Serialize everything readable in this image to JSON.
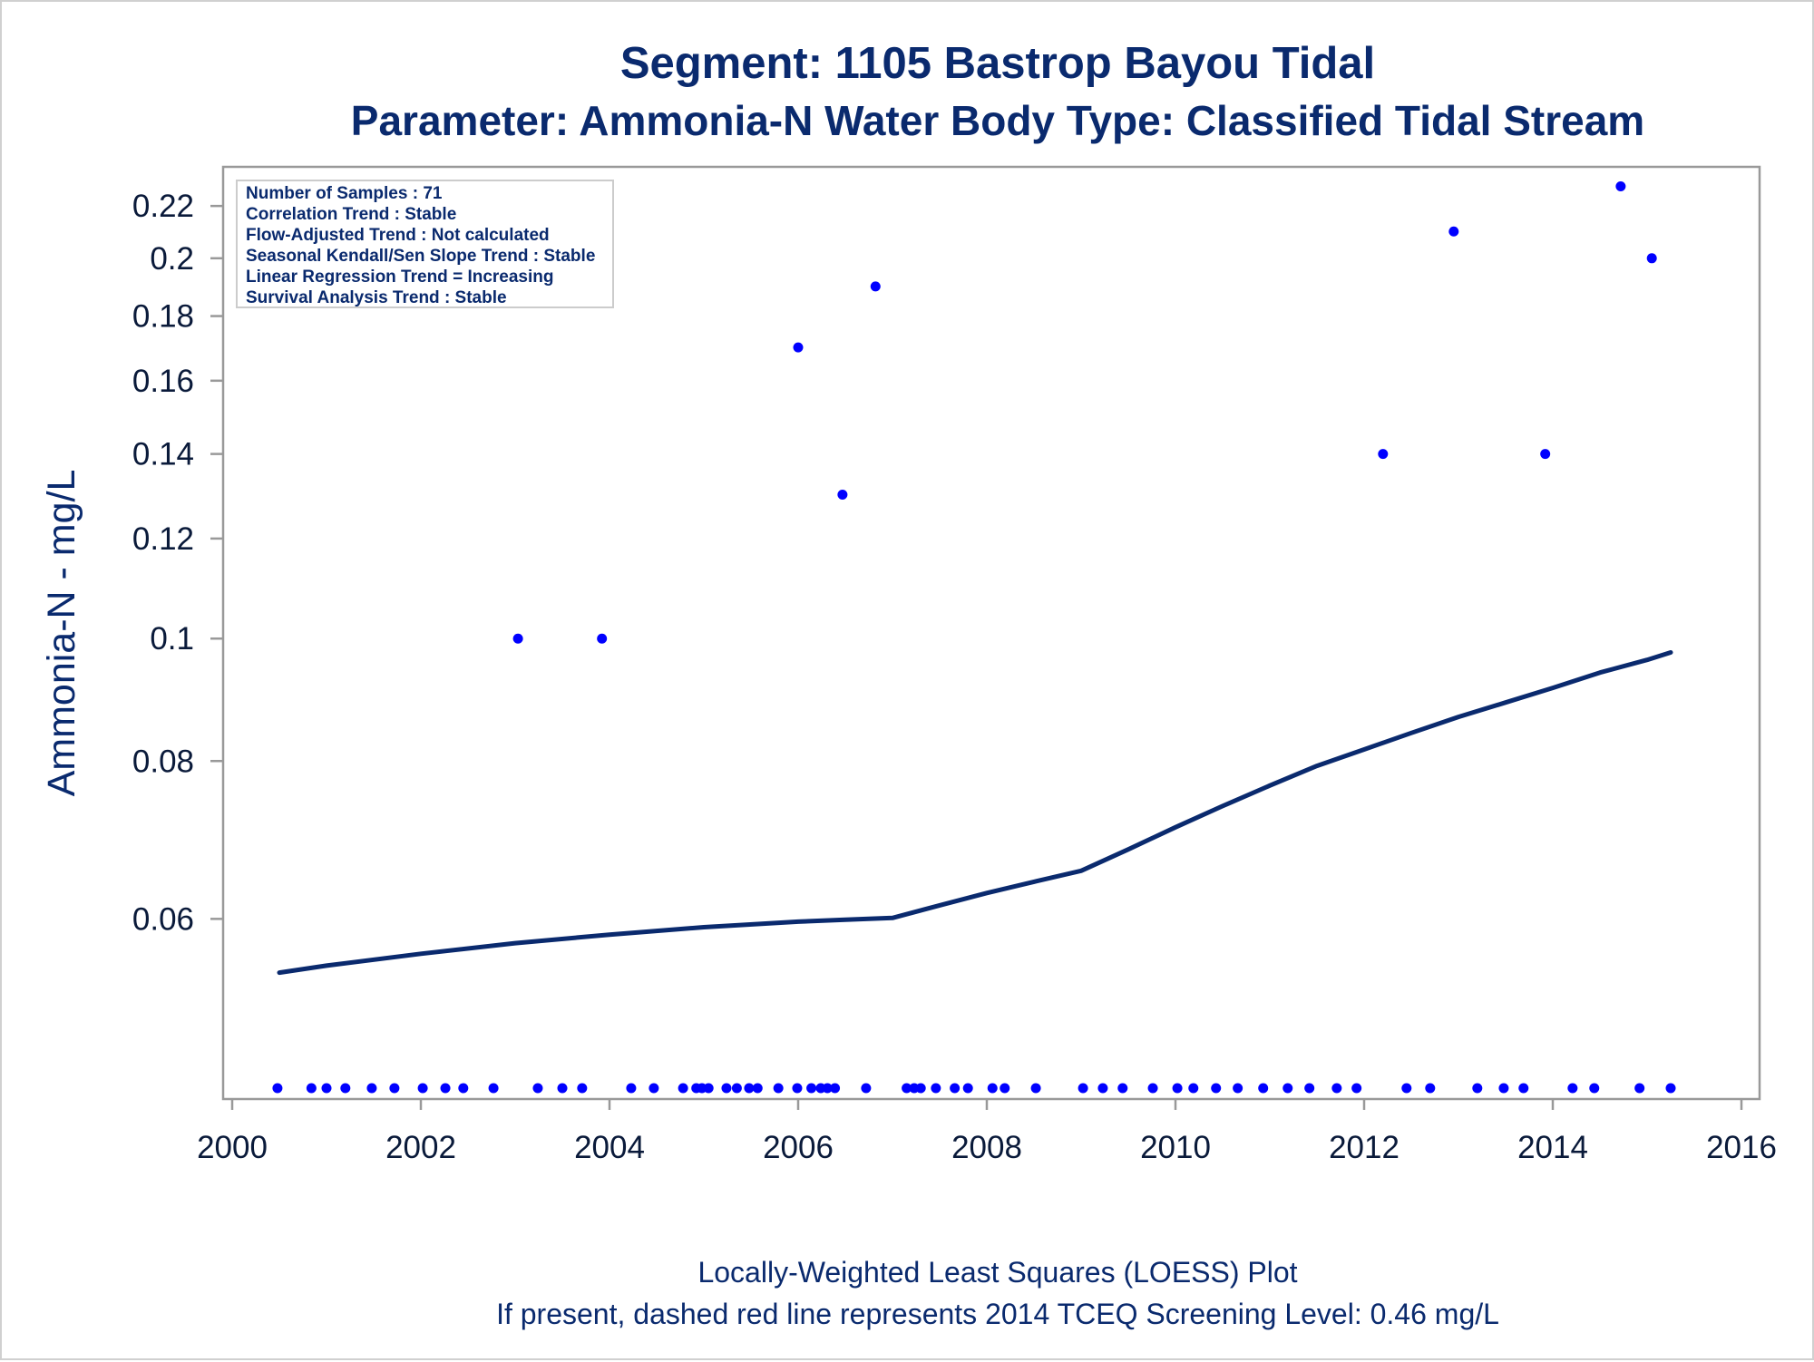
{
  "chart_data": {
    "type": "scatter",
    "title": "Segment: 1105  Bastrop Bayou Tidal",
    "subtitle": "Parameter: Ammonia-N   Water Body Type: Classified Tidal Stream",
    "xlabel": "",
    "ylabel": "Ammonia-N - mg/L",
    "y_scale": "log",
    "xlim": [
      2000,
      2016
    ],
    "ylim": [
      0.044,
      0.232
    ],
    "x_ticks": [
      "2000",
      "2002",
      "2004",
      "2006",
      "2008",
      "2010",
      "2012",
      "2014",
      "2016"
    ],
    "y_ticks": [
      "0.06",
      "0.08",
      "0.1",
      "0.12",
      "0.14",
      "0.16",
      "0.18",
      "0.2",
      "0.22"
    ],
    "grid": false,
    "stats_box": [
      "Number of Samples : 71",
      "Correlation Trend : Stable",
      "Flow-Adjusted Trend : Not calculated",
      "Seasonal Kendall/Sen Slope Trend : Stable",
      "Linear Regression Trend = Increasing",
      "Survival Analysis Trend : Stable"
    ],
    "footnotes": [
      "Locally-Weighted Least Squares (LOESS) Plot",
      "If present, dashed red line represents 2014 TCEQ Screening Level: 0.46 mg/L"
    ],
    "colors": {
      "points": "#0000ff",
      "loess": "#0a2a6e",
      "text": "#0a2a6e",
      "frame": "#999999"
    },
    "series": [
      {
        "kind": "points",
        "points": [
          {
            "x": 2003.03,
            "y": 0.1
          },
          {
            "x": 2003.92,
            "y": 0.1
          },
          {
            "x": 2006.0,
            "y": 0.17
          },
          {
            "x": 2006.47,
            "y": 0.13
          },
          {
            "x": 2006.82,
            "y": 0.19
          },
          {
            "x": 2012.2,
            "y": 0.14
          },
          {
            "x": 2012.95,
            "y": 0.21
          },
          {
            "x": 2013.92,
            "y": 0.14
          },
          {
            "x": 2014.72,
            "y": 0.228
          },
          {
            "x": 2015.05,
            "y": 0.2
          }
        ]
      },
      {
        "kind": "points-on-baseline",
        "y_label": "below 0.06 (plotted at axis bottom)",
        "x": [
          2000.48,
          2000.84,
          2001.0,
          2001.2,
          2001.48,
          2001.72,
          2002.02,
          2002.26,
          2002.45,
          2002.77,
          2003.24,
          2003.5,
          2003.71,
          2004.23,
          2004.47,
          2004.78,
          2004.92,
          2004.98,
          2005.05,
          2005.24,
          2005.35,
          2005.48,
          2005.57,
          2005.79,
          2005.99,
          2006.14,
          2006.24,
          2006.31,
          2006.39,
          2006.72,
          2007.15,
          2007.23,
          2007.3,
          2007.46,
          2007.66,
          2007.8,
          2008.06,
          2008.19,
          2008.52,
          2009.02,
          2009.23,
          2009.44,
          2009.76,
          2010.02,
          2010.19,
          2010.43,
          2010.66,
          2010.93,
          2011.19,
          2011.42,
          2011.71,
          2011.92,
          2012.45,
          2012.7,
          2013.2,
          2013.48,
          2013.69,
          2014.21,
          2014.44,
          2014.92,
          2015.25
        ]
      },
      {
        "kind": "loess",
        "points": [
          {
            "x": 2000.5,
            "y": 0.0544
          },
          {
            "x": 2001.0,
            "y": 0.0551
          },
          {
            "x": 2002.0,
            "y": 0.0563
          },
          {
            "x": 2003.0,
            "y": 0.0574
          },
          {
            "x": 2004.0,
            "y": 0.0583
          },
          {
            "x": 2005.0,
            "y": 0.0591
          },
          {
            "x": 2006.0,
            "y": 0.0597
          },
          {
            "x": 2006.5,
            "y": 0.0599
          },
          {
            "x": 2007.0,
            "y": 0.0601
          },
          {
            "x": 2007.5,
            "y": 0.0615
          },
          {
            "x": 2008.0,
            "y": 0.0629
          },
          {
            "x": 2008.5,
            "y": 0.0642
          },
          {
            "x": 2009.0,
            "y": 0.0655
          },
          {
            "x": 2009.5,
            "y": 0.0681
          },
          {
            "x": 2010.0,
            "y": 0.0709
          },
          {
            "x": 2010.5,
            "y": 0.0737
          },
          {
            "x": 2011.0,
            "y": 0.0765
          },
          {
            "x": 2011.5,
            "y": 0.0793
          },
          {
            "x": 2012.0,
            "y": 0.0817
          },
          {
            "x": 2012.5,
            "y": 0.0842
          },
          {
            "x": 2013.0,
            "y": 0.0867
          },
          {
            "x": 2013.5,
            "y": 0.089
          },
          {
            "x": 2014.0,
            "y": 0.0914
          },
          {
            "x": 2014.5,
            "y": 0.094
          },
          {
            "x": 2015.0,
            "y": 0.0962
          },
          {
            "x": 2015.25,
            "y": 0.0975
          }
        ]
      }
    ]
  }
}
